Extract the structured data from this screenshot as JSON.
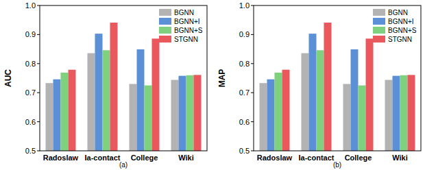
{
  "chart_data": [
    {
      "type": "bar",
      "y_label": "AUC",
      "x_label": "(a)",
      "categories": [
        "Radoslaw",
        "Ia-contact",
        "College",
        "Wiki"
      ],
      "series": [
        {
          "name": "BGNN",
          "color": "#b3b3b3",
          "values": [
            0.733,
            0.836,
            0.73,
            0.744
          ]
        },
        {
          "name": "BGNN+I",
          "color": "#5b8fd6",
          "values": [
            0.746,
            0.903,
            0.849,
            0.758
          ]
        },
        {
          "name": "BGNN+S",
          "color": "#7fd17f",
          "values": [
            0.769,
            0.846,
            0.725,
            0.76
          ]
        },
        {
          "name": "STGNN",
          "color": "#e8585c",
          "values": [
            0.779,
            0.941,
            0.886,
            0.761
          ]
        }
      ],
      "ylim": [
        0.5,
        1.0
      ],
      "yticks": [
        0.5,
        0.6,
        0.7,
        0.8,
        0.9,
        {
          "value": 1,
          "label": "1.0"
        }
      ],
      "legend": "upper right"
    },
    {
      "type": "bar",
      "y_label": "MAP",
      "x_label": "(b)",
      "categories": [
        "Radoslaw",
        "Ia-contact",
        "College",
        "Wiki"
      ],
      "series": [
        {
          "name": "BGNN",
          "color": "#b3b3b3",
          "values": [
            0.733,
            0.836,
            0.73,
            0.744
          ]
        },
        {
          "name": "BGNN+I",
          "color": "#5b8fd6",
          "values": [
            0.746,
            0.903,
            0.849,
            0.758
          ]
        },
        {
          "name": "BGNN+S",
          "color": "#7fd17f",
          "values": [
            0.769,
            0.846,
            0.725,
            0.76
          ]
        },
        {
          "name": "STGNN",
          "color": "#e8585c",
          "values": [
            0.779,
            0.941,
            0.886,
            0.761
          ]
        }
      ],
      "ylim": [
        0.5,
        1.0
      ],
      "yticks": [
        0.5,
        0.6,
        0.7,
        0.8,
        0.9,
        {
          "value": 1,
          "label": "1.0"
        }
      ],
      "legend": "upper right"
    }
  ]
}
